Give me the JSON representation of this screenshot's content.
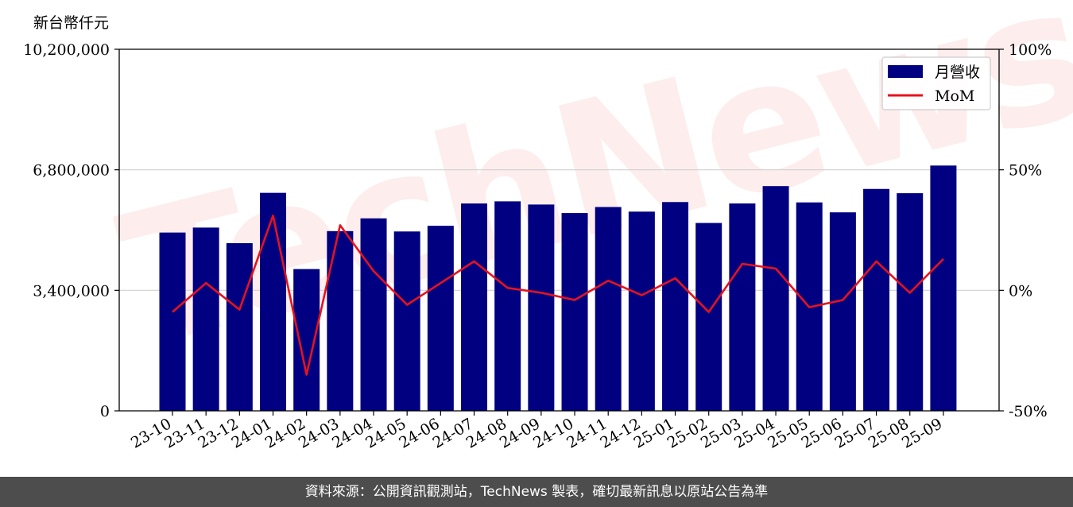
{
  "watermark": "TechNews",
  "footer": "資料來源：公開資訊觀測站，TechNews 製表，確切最新訊息以原站公告為準",
  "chart_data": {
    "type": "bar",
    "ylabel": "新台幣仟元",
    "grid": true,
    "legend_position": "top-right",
    "categories": [
      "23-10",
      "23-11",
      "23-12",
      "24-01",
      "24-02",
      "24-03",
      "24-04",
      "24-05",
      "24-06",
      "24-07",
      "24-08",
      "24-09",
      "24-10",
      "24-11",
      "24-12",
      "25-01",
      "25-02",
      "25-03",
      "25-04",
      "25-05",
      "25-06",
      "25-07",
      "25-08",
      "25-09"
    ],
    "ylim": [
      0,
      10200000
    ],
    "y_ticks": [
      0,
      3400000,
      6800000,
      10200000
    ],
    "y_tick_labels": [
      "0",
      "3,400,000",
      "6,800,000",
      "10,200,000"
    ],
    "y2lim": [
      -50,
      100
    ],
    "y2_ticks": [
      -50,
      0,
      50,
      100
    ],
    "y2_tick_labels": [
      "-50%",
      "0%",
      "50%",
      "100%"
    ],
    "series": [
      {
        "name": "月營收",
        "kind": "bar",
        "axis": "left",
        "color": "#000080",
        "values": [
          5030000,
          5170000,
          4730000,
          6150000,
          4000000,
          5070000,
          5430000,
          5060000,
          5220000,
          5850000,
          5910000,
          5820000,
          5580000,
          5750000,
          5620000,
          5890000,
          5300000,
          5850000,
          6340000,
          5880000,
          5600000,
          6260000,
          6140000,
          6920000
        ]
      },
      {
        "name": "MoM",
        "kind": "line",
        "axis": "right",
        "color": "#e8121c",
        "values": [
          -9,
          3,
          -8,
          31,
          -35,
          27,
          8,
          -6,
          3,
          12,
          1,
          -1,
          -4,
          4,
          -2,
          5,
          -9,
          11,
          9,
          -7,
          -4,
          12,
          -1,
          13
        ]
      }
    ]
  }
}
